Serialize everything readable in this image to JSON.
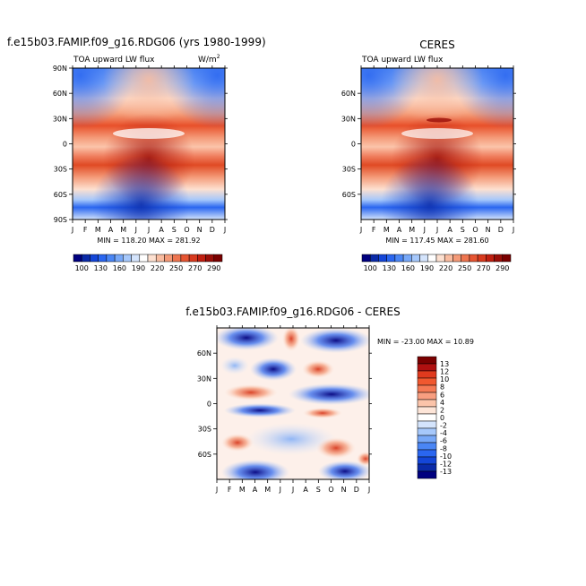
{
  "chart_data": [
    {
      "type": "heatmap",
      "title": "f.e15b03.FAMIP.f09_g16.RDG06 (yrs 1980-1999)",
      "subtitle_left": "TOA upward LW flux",
      "units": "W/m2",
      "x_ticks": [
        "J",
        "F",
        "M",
        "A",
        "M",
        "J",
        "J",
        "A",
        "S",
        "O",
        "N",
        "D",
        "J"
      ],
      "y_ticks": [
        "90N",
        "60N",
        "30N",
        "0",
        "30S",
        "60S",
        "90S"
      ],
      "stats": "MIN = 118.20   MAX = 281.92",
      "min": 118.2,
      "max": 281.92
    },
    {
      "type": "heatmap",
      "title": "CERES",
      "subtitle_left": "TOA upward LW flux",
      "x_ticks": [
        "J",
        "F",
        "M",
        "A",
        "M",
        "J",
        "J",
        "A",
        "S",
        "O",
        "N",
        "D",
        "J"
      ],
      "y_ticks": [
        "60N",
        "30N",
        "0",
        "30S",
        "60S"
      ],
      "stats": "MIN = 117.45   MAX = 281.60",
      "min": 117.45,
      "max": 281.6
    },
    {
      "type": "heatmap",
      "title": "f.e15b03.FAMIP.f09_g16.RDG06 - CERES",
      "x_ticks": [
        "J",
        "F",
        "M",
        "A",
        "M",
        "J",
        "J",
        "A",
        "S",
        "O",
        "N",
        "D",
        "J"
      ],
      "y_ticks": [
        "60N",
        "30N",
        "0",
        "30S",
        "60S"
      ],
      "stats": "MIN = -23.00   MAX = 10.89",
      "min": -23.0,
      "max": 10.89
    }
  ],
  "colorbar_top": {
    "labels": [
      "100",
      "130",
      "160",
      "190",
      "220",
      "250",
      "270",
      "290"
    ],
    "colors": [
      "#00007f",
      "#0a2aa8",
      "#1446d8",
      "#2a66f0",
      "#4a86f5",
      "#77a8f8",
      "#a6c8fb",
      "#d4e4fc",
      "#ffffff",
      "#fde0d0",
      "#f9bca0",
      "#f49a78",
      "#ee7550",
      "#e65532",
      "#d83a1e",
      "#c01f10",
      "#9a0e08",
      "#7a0000"
    ]
  },
  "colorbar_diff": {
    "labels": [
      "13",
      "12",
      "10",
      "8",
      "6",
      "4",
      "2",
      "0",
      "-2",
      "-4",
      "-6",
      "-8",
      "-10",
      "-12",
      "-13"
    ],
    "colors": [
      "#7a0000",
      "#b01010",
      "#e03a1e",
      "#f0582f",
      "#f57a55",
      "#f89e80",
      "#fbc4aa",
      "#fde5d8",
      "#ffffff",
      "#d4e4fc",
      "#a6c8fb",
      "#77a8f8",
      "#4a86f5",
      "#2a66f0",
      "#1446d8",
      "#0a2aa8",
      "#00007f"
    ]
  }
}
